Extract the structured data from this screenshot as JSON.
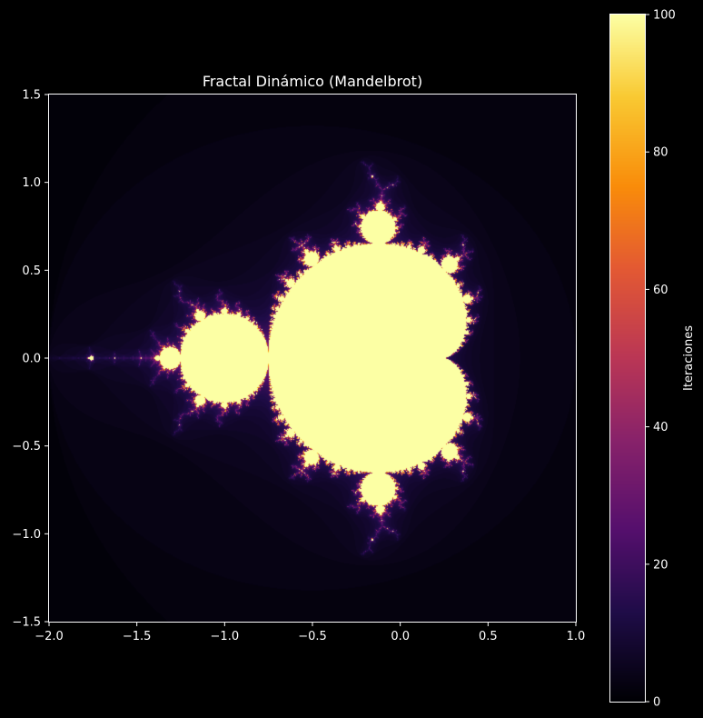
{
  "chart_data": {
    "type": "heatmap",
    "title": "Fractal Dinámico (Mandelbrot)",
    "xlabel": "",
    "ylabel": "",
    "xlim": [
      -2.0,
      1.0
    ],
    "ylim": [
      -1.5,
      1.5
    ],
    "x_ticks": [
      "−2.0",
      "−1.5",
      "−1.0",
      "−0.5",
      "0.0",
      "0.5",
      "1.0"
    ],
    "x_tick_values": [
      -2.0,
      -1.5,
      -1.0,
      -0.5,
      0.0,
      0.5,
      1.0
    ],
    "y_ticks": [
      "−1.5",
      "−1.0",
      "−0.5",
      "0.0",
      "0.5",
      "1.0",
      "1.5"
    ],
    "y_tick_values": [
      -1.5,
      -1.0,
      -0.5,
      0.0,
      0.5,
      1.0,
      1.5
    ],
    "max_iterations": 100,
    "colormap": "inferno",
    "colorbar": {
      "label": "Iteraciones",
      "range": [
        0,
        100
      ],
      "ticks": [
        "0",
        "20",
        "40",
        "60",
        "80",
        "100"
      ],
      "tick_values": [
        0,
        20,
        40,
        60,
        80,
        100
      ]
    },
    "grid": false,
    "background": "#000000",
    "foreground": "#ffffff"
  }
}
